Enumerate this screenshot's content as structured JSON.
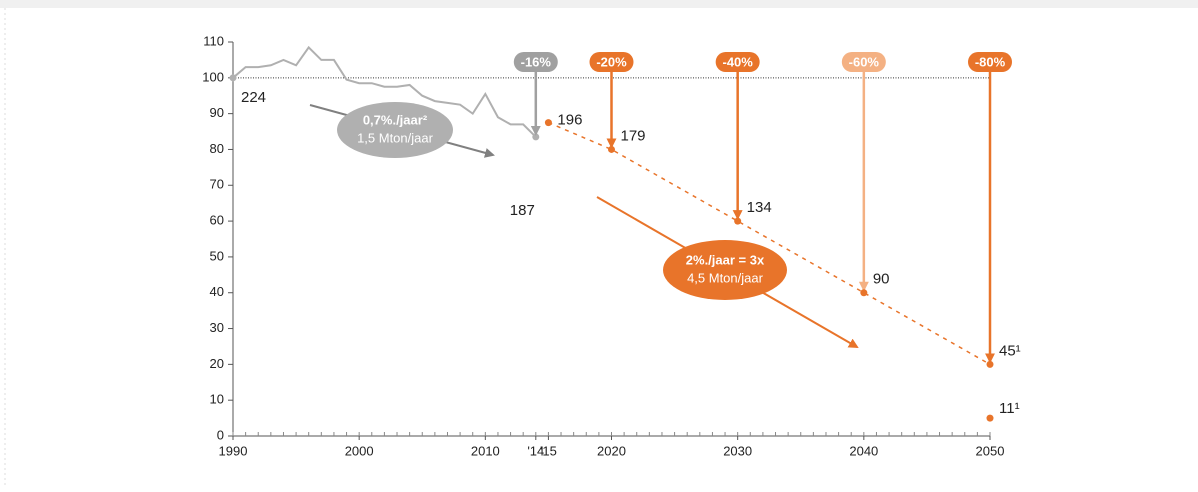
{
  "chart_data": {
    "type": "line",
    "xlim": [
      1990,
      2050
    ],
    "ylim": [
      0,
      110
    ],
    "yticks": [
      0,
      10,
      20,
      30,
      40,
      50,
      60,
      70,
      80,
      90,
      100,
      110
    ],
    "xticks": [
      1990,
      2000,
      2010,
      {
        "value": 2014,
        "label": "'14"
      },
      {
        "value": 2015,
        "label": "'15"
      },
      2020,
      2030,
      2040,
      2050
    ],
    "minor_xtick_step": 1,
    "reference_line": 100,
    "series": [
      {
        "color": "#b0b0b0",
        "x": [
          1990,
          1991,
          1992,
          1993,
          1994,
          1995,
          1996,
          1997,
          1998,
          1999,
          2000,
          2001,
          2002,
          2003,
          2004,
          2005,
          2006,
          2007,
          2008,
          2009,
          2010,
          2011,
          2012,
          2013,
          2014
        ],
        "values": [
          100,
          103,
          103,
          103.5,
          105,
          103.5,
          108.5,
          105,
          105,
          99.5,
          98.5,
          98.5,
          97.5,
          97.5,
          98,
          95,
          93.5,
          93,
          92.5,
          90,
          95.5,
          89,
          87,
          87,
          83.5
        ],
        "labels": [
          "224",
          "187"
        ]
      }
    ],
    "targets": {
      "color": "#e8742a",
      "x": [
        2015,
        2020,
        2030,
        2040,
        2050
      ],
      "values": [
        87.5,
        80,
        60,
        40,
        20
      ],
      "labels": [
        "196",
        "179",
        "134",
        "90",
        "45¹"
      ]
    },
    "extra_point": {
      "color": "#e8742a",
      "x": 2050,
      "value": 5,
      "label": "11¹"
    },
    "badges": [
      {
        "x": 2014,
        "label": "-16%",
        "color": "#a0a0a0"
      },
      {
        "x": 2020,
        "label": "-20%",
        "color": "#e8742a"
      },
      {
        "x": 2030,
        "label": "-40%",
        "color": "#e8742a"
      },
      {
        "x": 2040,
        "label": "-60%",
        "color": "#f4b183"
      },
      {
        "x": 2050,
        "label": "-80%",
        "color": "#e8742a"
      }
    ],
    "callouts": [
      {
        "lines": [
          "0,7%./jaar²",
          "1,5 Mton/jaar"
        ],
        "color": "#b0b0b0",
        "arrow_color": "#808080"
      },
      {
        "lines": [
          "2%./jaar = 3x",
          "4,5 Mton/jaar"
        ],
        "color": "#e8742a",
        "arrow_color": "#e8742a"
      }
    ]
  }
}
